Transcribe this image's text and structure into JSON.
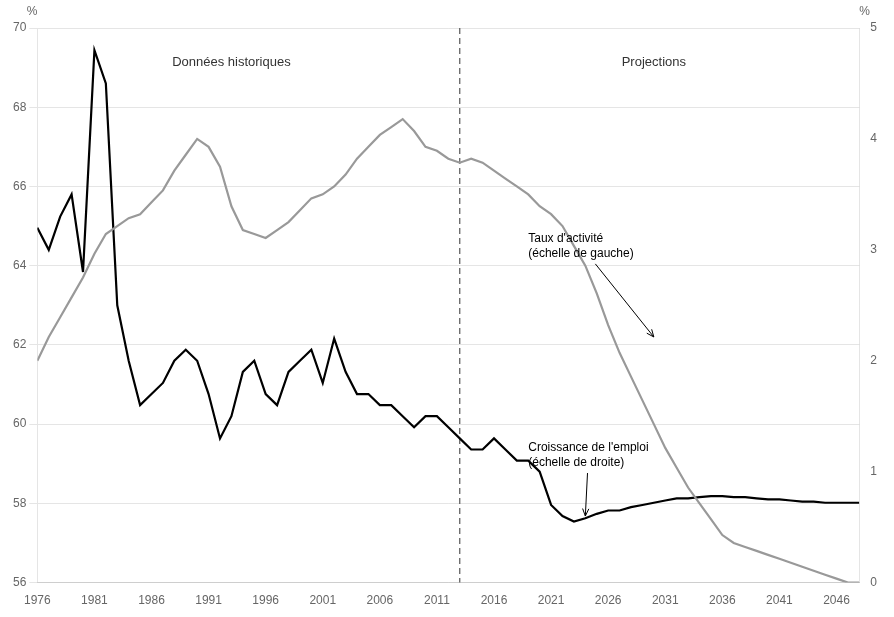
{
  "chart_data": {
    "type": "line",
    "x": [
      1976,
      1977,
      1978,
      1979,
      1980,
      1981,
      1982,
      1983,
      1984,
      1985,
      1986,
      1987,
      1988,
      1989,
      1990,
      1991,
      1992,
      1993,
      1994,
      1995,
      1996,
      1997,
      1998,
      1999,
      2000,
      2001,
      2002,
      2003,
      2004,
      2005,
      2006,
      2007,
      2008,
      2009,
      2010,
      2011,
      2012,
      2013,
      2014,
      2015,
      2016,
      2017,
      2018,
      2019,
      2020,
      2021,
      2022,
      2023,
      2024,
      2025,
      2026,
      2027,
      2028,
      2029,
      2030,
      2031,
      2032,
      2033,
      2034,
      2035,
      2036,
      2037,
      2038,
      2039,
      2040,
      2041,
      2042,
      2043,
      2044,
      2045,
      2046,
      2047,
      2048
    ],
    "series": [
      {
        "color": "#999999",
        "axis": "y",
        "values": [
          61.6,
          62.2,
          62.7,
          63.2,
          63.7,
          64.3,
          64.8,
          65.0,
          65.2,
          65.3,
          65.6,
          65.9,
          66.4,
          66.8,
          67.2,
          67.0,
          66.5,
          65.5,
          64.9,
          64.8,
          64.7,
          64.9,
          65.1,
          65.4,
          65.7,
          65.8,
          66.0,
          66.3,
          66.7,
          67.0,
          67.3,
          67.5,
          67.7,
          67.4,
          67.0,
          66.9,
          66.7,
          66.6,
          66.7,
          66.6,
          66.4,
          66.2,
          66.0,
          65.8,
          65.5,
          65.3,
          65.0,
          64.5,
          64.0,
          63.3,
          62.5,
          61.8,
          61.2,
          60.6,
          60.0,
          59.4,
          58.9,
          58.4,
          58.0,
          57.6,
          57.2,
          57.0,
          56.9,
          56.8,
          56.7,
          56.6,
          56.5,
          56.4,
          56.3,
          56.2,
          56.1,
          56.0,
          56.0
        ]
      },
      {
        "color": "#000000",
        "axis": "y2",
        "values": [
          3.2,
          3.0,
          3.3,
          3.5,
          2.8,
          4.8,
          4.5,
          2.5,
          2.0,
          1.6,
          1.7,
          1.8,
          2.0,
          2.1,
          2.0,
          1.7,
          1.3,
          1.5,
          1.9,
          2.0,
          1.7,
          1.6,
          1.9,
          2.0,
          2.1,
          1.8,
          2.2,
          1.9,
          1.7,
          1.7,
          1.6,
          1.6,
          1.5,
          1.4,
          1.5,
          1.5,
          1.4,
          1.3,
          1.2,
          1.2,
          1.3,
          1.2,
          1.1,
          1.1,
          1.0,
          0.7,
          0.6,
          0.55,
          0.58,
          0.62,
          0.65,
          0.65,
          0.68,
          0.7,
          0.72,
          0.74,
          0.76,
          0.76,
          0.77,
          0.78,
          0.78,
          0.77,
          0.77,
          0.76,
          0.75,
          0.75,
          0.74,
          0.73,
          0.73,
          0.72,
          0.72,
          0.72,
          0.72
        ]
      }
    ],
    "xlim": [
      1976,
      2048
    ],
    "xticks": [
      1976,
      1981,
      1986,
      1991,
      1996,
      2001,
      2006,
      2011,
      2016,
      2021,
      2026,
      2031,
      2036,
      2041,
      2046
    ],
    "ylim": [
      56,
      70
    ],
    "yticks": [
      56,
      58,
      60,
      62,
      64,
      66,
      68,
      70
    ],
    "y2lim": [
      0,
      5
    ],
    "y2ticks": [
      0,
      1,
      2,
      3,
      4,
      5
    ],
    "ylabel": "%",
    "y2label": "%",
    "grid": true,
    "vline_x": 2013,
    "annotations": [
      {
        "text": "Données historiques",
        "x": 1993,
        "y": 69.3,
        "axis": "y"
      },
      {
        "text": "Projections",
        "x": 2030,
        "y": 69.3,
        "axis": "y"
      },
      {
        "text": "Taux d'activité\n(échelle de gauche)",
        "x": 2019,
        "y": 64.5,
        "axis": "y",
        "arrow_to": [
          2030,
          62.2
        ]
      },
      {
        "text": "Croissance de l'emploi\n(échelle de droite)",
        "x": 2019,
        "y": 1.15,
        "axis": "y2",
        "arrow_to": [
          2024,
          0.6
        ]
      }
    ]
  }
}
